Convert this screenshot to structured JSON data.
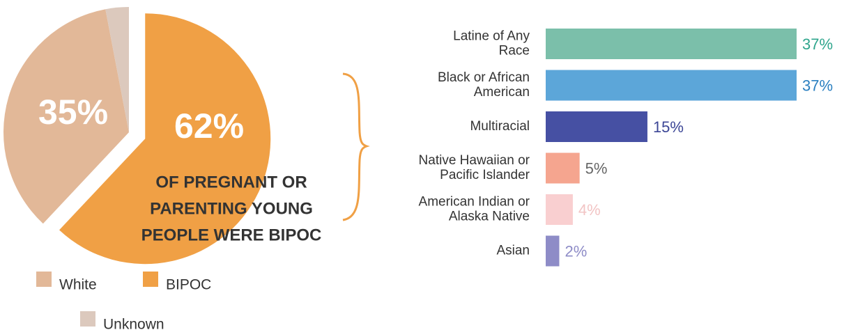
{
  "chart_data": [
    {
      "type": "pie",
      "series": [
        {
          "name": "BIPOC",
          "color": "#f0a045",
          "values": [
            62
          ],
          "value_labels": [
            "62%"
          ]
        },
        {
          "name": "White",
          "color": "#e2b898",
          "values": [
            35
          ],
          "value_labels": [
            "35%"
          ]
        },
        {
          "name": "Unknown",
          "color": "#dcc9bd",
          "values": [
            3
          ]
        }
      ],
      "annotation": [
        "OF PREGNANT OR",
        "PARENTING YOUNG",
        "PEOPLE WERE BIPOC"
      ]
    },
    {
      "type": "hbar",
      "categories": [
        [
          "Latine of Any",
          "Race"
        ],
        [
          "Black or African",
          "American"
        ],
        [
          "Multiracial"
        ],
        [
          "Native Hawaiian or",
          "Pacific Islander"
        ],
        [
          "American Indian or",
          "Alaska Native"
        ],
        [
          "Asian"
        ]
      ],
      "values": [
        37,
        37,
        15,
        5,
        4,
        2
      ],
      "value_labels": [
        "37%",
        "37%",
        "15%",
        "5%",
        "4%",
        "2%"
      ],
      "colors": [
        "#7bbfaa",
        "#5ca6d9",
        "#4650a3",
        "#f5a58f",
        "#f9cfd0",
        "#8e8cc7"
      ],
      "label_colors": [
        "#2ea58c",
        "#2a7fc0",
        "#3c4696",
        "#666666",
        "#f2c4c4",
        "#8e8cc7"
      ]
    }
  ]
}
